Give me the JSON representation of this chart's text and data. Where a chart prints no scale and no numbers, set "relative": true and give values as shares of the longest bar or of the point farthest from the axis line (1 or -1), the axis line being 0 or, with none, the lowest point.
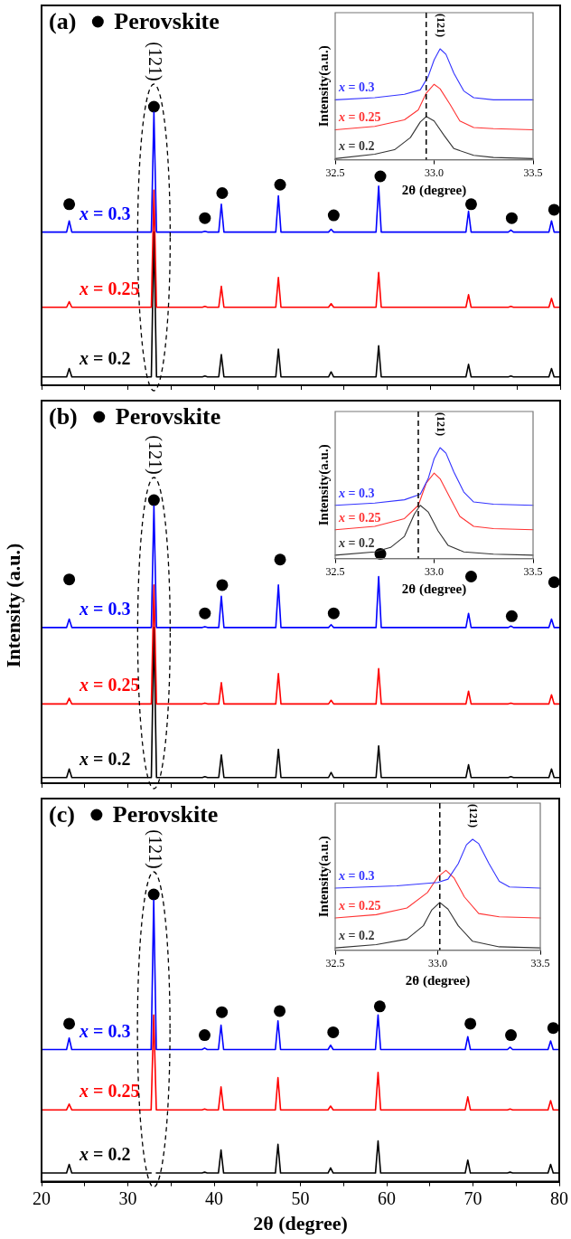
{
  "chart_data": [
    {
      "type": "line",
      "title": "(a)",
      "relative": true,
      "legend": "top left",
      "tick_labels": false,
      "xlim": [
        20,
        80
      ],
      "xticks": [
        20,
        {
          "value": 25,
          "label": null
        },
        30,
        {
          "value": 35,
          "label": null
        },
        40,
        {
          "value": 45,
          "label": null
        },
        50,
        {
          "value": 55,
          "label": null
        },
        60,
        {
          "value": 65,
          "label": null
        },
        70,
        {
          "value": 75,
          "label": null
        },
        80
      ],
      "x": [
        20,
        22.9,
        23.2,
        23.5,
        32.7,
        33.0,
        33.3,
        38.6,
        38.9,
        39.2,
        40.5,
        40.8,
        41.1,
        47.1,
        47.4,
        47.7,
        53.2,
        53.5,
        53.8,
        58.7,
        59.0,
        59.3,
        69.1,
        69.4,
        69.7,
        74.0,
        74.3,
        74.6,
        78.7,
        79.0,
        79.3,
        80
      ],
      "series": [
        {
          "name": "x = 0.3",
          "color": "#0000ff",
          "values": [
            0.55,
            0.55,
            0.59,
            0.55,
            0.55,
            0.98,
            0.55,
            0.55,
            0.553,
            0.55,
            0.55,
            0.65,
            0.55,
            0.55,
            0.68,
            0.55,
            0.55,
            0.56,
            0.55,
            0.55,
            0.715,
            0.55,
            0.55,
            0.625,
            0.55,
            0.55,
            0.557,
            0.55,
            0.55,
            0.59,
            0.55,
            0.55
          ]
        },
        {
          "name": "x = 0.25",
          "color": "#ff0000",
          "values": [
            0.28,
            0.28,
            0.3,
            0.28,
            0.28,
            0.7,
            0.28,
            0.28,
            0.283,
            0.28,
            0.28,
            0.355,
            0.28,
            0.28,
            0.387,
            0.28,
            0.28,
            0.293,
            0.28,
            0.28,
            0.405,
            0.28,
            0.28,
            0.325,
            0.28,
            0.28,
            0.283,
            0.28,
            0.28,
            0.312,
            0.28,
            0.28
          ]
        },
        {
          "name": "x = 0.2",
          "color": "#000000",
          "values": [
            0.03,
            0.03,
            0.06,
            0.03,
            0.03,
            0.55,
            0.03,
            0.03,
            0.033,
            0.03,
            0.03,
            0.11,
            0.03,
            0.03,
            0.13,
            0.03,
            0.03,
            0.048,
            0.03,
            0.03,
            0.142,
            0.03,
            0.03,
            0.075,
            0.03,
            0.03,
            0.033,
            0.03,
            0.03,
            0.06,
            0.03,
            0.03
          ]
        },
        {
          "name": "Perovskite",
          "type": "scatter",
          "marker": "circle",
          "color": "#000000",
          "x": [
            23.2,
            33.0,
            38.9,
            40.9,
            47.6,
            53.8,
            59.2,
            69.7,
            74.4,
            79.3
          ],
          "values": [
            0.65,
            1.0,
            0.6,
            0.69,
            0.72,
            0.61,
            0.75,
            0.65,
            0.6,
            0.63
          ]
        }
      ],
      "annotations": [
        {
          "text": "(121)",
          "x": 33.0,
          "y": 1.0
        }
      ]
    },
    {
      "type": "line",
      "relative": true,
      "xlabel": "2θ (degree)",
      "ylabel": "Intensity(a.u.)",
      "xlim": [
        32.5,
        33.5
      ],
      "xticks": [
        32.5,
        {
          "value": 33,
          "label": "33.0"
        },
        33.5
      ],
      "ref_lines": [
        {
          "axis": "x",
          "value": 32.96,
          "line_style": "dashed",
          "color": "#000000"
        }
      ],
      "series": [
        {
          "name": "x = 0.3",
          "color": "#3333ff",
          "x": [
            32.5,
            32.7,
            32.85,
            32.93,
            32.97,
            33.0,
            33.03,
            33.06,
            33.1,
            33.15,
            33.2,
            33.3,
            33.5
          ],
          "values": [
            0.54,
            0.56,
            0.59,
            0.63,
            0.75,
            0.9,
            1,
            0.95,
            0.78,
            0.62,
            0.56,
            0.54,
            0.54
          ]
        },
        {
          "name": "x = 0.25",
          "color": "#ff3333",
          "x": [
            32.5,
            32.7,
            32.85,
            32.92,
            32.96,
            33.0,
            33.03,
            33.08,
            33.13,
            33.2,
            33.3,
            33.5
          ],
          "values": [
            0.27,
            0.3,
            0.36,
            0.45,
            0.6,
            0.68,
            0.64,
            0.5,
            0.35,
            0.29,
            0.28,
            0.27
          ]
        },
        {
          "name": "x = 0.2",
          "color": "#333333",
          "x": [
            32.5,
            32.7,
            32.8,
            32.88,
            32.93,
            32.96,
            33.0,
            33.05,
            33.1,
            33.2,
            33.3,
            33.5
          ],
          "values": [
            0.01,
            0.05,
            0.09,
            0.2,
            0.34,
            0.39,
            0.35,
            0.22,
            0.1,
            0.04,
            0.02,
            0.01
          ]
        }
      ],
      "annotations": [
        {
          "text": "(121)",
          "x": 33.03,
          "y": 1.0
        }
      ]
    },
    {
      "type": "line",
      "title": "(b)",
      "relative": true,
      "legend": "top left",
      "tick_labels": false,
      "ylabel": "Intensity (a.u.)",
      "xlim": [
        20,
        80
      ],
      "xticks": [
        20,
        {
          "value": 25,
          "label": null
        },
        30,
        {
          "value": 35,
          "label": null
        },
        40,
        {
          "value": 45,
          "label": null
        },
        50,
        {
          "value": 55,
          "label": null
        },
        60,
        {
          "value": 65,
          "label": null
        },
        70,
        {
          "value": 75,
          "label": null
        },
        80
      ],
      "x": [
        20,
        22.9,
        23.2,
        23.5,
        32.7,
        33.0,
        33.3,
        38.6,
        38.9,
        39.2,
        40.5,
        40.8,
        41.1,
        47.1,
        47.4,
        47.7,
        53.2,
        53.5,
        53.8,
        58.7,
        59.0,
        59.3,
        69.1,
        69.4,
        69.7,
        74.0,
        74.3,
        74.6,
        78.7,
        79.0,
        79.3,
        80
      ],
      "series": [
        {
          "name": "x = 0.3",
          "color": "#0000ff",
          "values": [
            0.55,
            0.55,
            0.58,
            0.55,
            0.55,
            0.98,
            0.55,
            0.55,
            0.553,
            0.55,
            0.55,
            0.66,
            0.55,
            0.55,
            0.7,
            0.55,
            0.55,
            0.56,
            0.55,
            0.55,
            0.73,
            0.55,
            0.55,
            0.6,
            0.55,
            0.55,
            0.555,
            0.55,
            0.55,
            0.58,
            0.55,
            0.55
          ]
        },
        {
          "name": "x = 0.25",
          "color": "#ff0000",
          "values": [
            0.28,
            0.28,
            0.3,
            0.28,
            0.28,
            0.7,
            0.28,
            0.28,
            0.283,
            0.28,
            0.28,
            0.355,
            0.28,
            0.28,
            0.387,
            0.28,
            0.28,
            0.293,
            0.28,
            0.28,
            0.405,
            0.28,
            0.28,
            0.325,
            0.28,
            0.28,
            0.283,
            0.28,
            0.28,
            0.312,
            0.28,
            0.28
          ]
        },
        {
          "name": "x = 0.2",
          "color": "#000000",
          "values": [
            0.02,
            0.02,
            0.05,
            0.02,
            0.02,
            0.55,
            0.02,
            0.02,
            0.023,
            0.02,
            0.02,
            0.1,
            0.02,
            0.02,
            0.12,
            0.02,
            0.02,
            0.038,
            0.02,
            0.02,
            0.132,
            0.02,
            0.02,
            0.065,
            0.02,
            0.02,
            0.023,
            0.02,
            0.02,
            0.05,
            0.02,
            0.02
          ]
        },
        {
          "name": "Perovskite",
          "type": "scatter",
          "marker": "circle",
          "color": "#000000",
          "x": [
            23.2,
            33.0,
            38.9,
            40.9,
            47.6,
            53.8,
            59.2,
            69.7,
            74.4,
            79.3
          ],
          "values": [
            0.72,
            1.0,
            0.6,
            0.7,
            0.79,
            0.6,
            0.81,
            0.73,
            0.59,
            0.71
          ]
        }
      ],
      "annotations": [
        {
          "text": "(121)",
          "x": 33.0,
          "y": 1.0
        }
      ]
    },
    {
      "type": "line",
      "relative": true,
      "xlabel": "2θ (degree)",
      "ylabel": "Intensity(a.u.)",
      "xlim": [
        32.5,
        33.5
      ],
      "xticks": [
        32.5,
        {
          "value": 33,
          "label": "33.0"
        },
        33.5
      ],
      "ref_lines": [
        {
          "axis": "x",
          "value": 32.92,
          "line_style": "dashed",
          "color": "#000000"
        }
      ],
      "series": [
        {
          "name": "x = 0.3",
          "color": "#3333ff",
          "x": [
            32.5,
            32.7,
            32.85,
            32.93,
            32.97,
            33.0,
            33.03,
            33.06,
            33.1,
            33.15,
            33.2,
            33.3,
            33.5
          ],
          "values": [
            0.48,
            0.5,
            0.53,
            0.58,
            0.72,
            0.9,
            1,
            0.95,
            0.78,
            0.6,
            0.51,
            0.49,
            0.48
          ]
        },
        {
          "name": "x = 0.25",
          "color": "#ff3333",
          "x": [
            32.5,
            32.7,
            32.85,
            32.92,
            32.96,
            33.0,
            33.03,
            33.08,
            33.13,
            33.2,
            33.3,
            33.5
          ],
          "values": [
            0.26,
            0.29,
            0.36,
            0.48,
            0.68,
            0.77,
            0.72,
            0.55,
            0.38,
            0.29,
            0.27,
            0.26
          ]
        },
        {
          "name": "x = 0.2",
          "color": "#333333",
          "x": [
            32.5,
            32.7,
            32.78,
            32.85,
            32.9,
            32.93,
            32.97,
            33.02,
            33.07,
            33.15,
            33.3,
            33.5
          ],
          "values": [
            0.03,
            0.06,
            0.1,
            0.2,
            0.4,
            0.48,
            0.42,
            0.25,
            0.12,
            0.06,
            0.04,
            0.03
          ]
        }
      ],
      "annotations": [
        {
          "text": "(121)",
          "x": 33.03,
          "y": 1.0
        }
      ]
    },
    {
      "type": "line",
      "title": "(c)",
      "relative": true,
      "legend": "top left",
      "tick_labels": "x",
      "xlabel": "2θ (degree)",
      "xlim": [
        20,
        80
      ],
      "xticks": [
        20,
        {
          "value": 25,
          "label": null
        },
        30,
        {
          "value": 35,
          "label": null
        },
        40,
        {
          "value": 45,
          "label": null
        },
        50,
        {
          "value": 55,
          "label": null
        },
        60,
        {
          "value": 65,
          "label": null
        },
        70,
        {
          "value": 75,
          "label": null
        },
        80
      ],
      "x": [
        20,
        22.9,
        23.2,
        23.5,
        32.7,
        33.0,
        33.3,
        38.6,
        38.9,
        39.2,
        40.5,
        40.8,
        41.1,
        47.1,
        47.4,
        47.7,
        53.2,
        53.5,
        53.8,
        58.7,
        59.0,
        59.3,
        69.1,
        69.4,
        69.7,
        74.0,
        74.3,
        74.6,
        78.7,
        79.0,
        79.3,
        80
      ],
      "series": [
        {
          "name": "x = 0.3",
          "color": "#0000ff",
          "values": [
            0.46,
            0.46,
            0.5,
            0.46,
            0.46,
            0.98,
            0.46,
            0.46,
            0.465,
            0.46,
            0.46,
            0.545,
            0.46,
            0.46,
            0.56,
            0.46,
            0.46,
            0.475,
            0.46,
            0.46,
            0.58,
            0.46,
            0.46,
            0.505,
            0.46,
            0.46,
            0.468,
            0.46,
            0.46,
            0.49,
            0.46,
            0.46
          ]
        },
        {
          "name": "x = 0.25",
          "color": "#ff0000",
          "values": [
            0.25,
            0.25,
            0.27,
            0.25,
            0.25,
            0.58,
            0.25,
            0.25,
            0.253,
            0.25,
            0.25,
            0.33,
            0.25,
            0.25,
            0.362,
            0.25,
            0.25,
            0.263,
            0.25,
            0.25,
            0.38,
            0.25,
            0.25,
            0.295,
            0.25,
            0.25,
            0.253,
            0.25,
            0.25,
            0.282,
            0.25,
            0.25
          ]
        },
        {
          "name": "x = 0.2",
          "color": "#000000",
          "values": [
            0.03,
            0.03,
            0.06,
            0.03,
            0.03,
            null,
            0.03,
            0.03,
            0.033,
            0.03,
            0.03,
            0.11,
            0.03,
            0.03,
            0.13,
            0.03,
            0.03,
            0.048,
            0.03,
            0.03,
            0.142,
            0.03,
            0.03,
            0.075,
            0.03,
            0.03,
            0.033,
            0.03,
            0.03,
            0.06,
            0.03,
            0.03
          ]
        },
        {
          "name": "Perovskite",
          "type": "scatter",
          "marker": "circle",
          "color": "#000000",
          "x": [
            23.2,
            33.0,
            38.9,
            40.9,
            47.6,
            53.8,
            59.2,
            69.7,
            74.4,
            79.3
          ],
          "values": [
            0.55,
            1.0,
            0.51,
            0.59,
            0.594,
            0.52,
            0.61,
            0.55,
            0.51,
            0.535
          ]
        }
      ],
      "annotations": [
        {
          "text": "(121)",
          "x": 33.0,
          "y": 1.0
        }
      ]
    },
    {
      "type": "line",
      "relative": true,
      "xlabel": "2θ (degree)",
      "ylabel": "Intensity(a.u.)",
      "xlim": [
        32.5,
        33.5
      ],
      "xticks": [
        32.5,
        {
          "value": 33,
          "label": "33.0"
        },
        33.5
      ],
      "ref_lines": [
        {
          "axis": "x",
          "value": 33.01,
          "line_style": "dashed",
          "color": "#000000"
        }
      ],
      "series": [
        {
          "name": "x = 0.3",
          "color": "#3333ff",
          "x": [
            32.5,
            32.8,
            33.0,
            33.05,
            33.1,
            33.14,
            33.17,
            33.2,
            33.25,
            33.3,
            33.35,
            33.5
          ],
          "values": [
            0.56,
            0.58,
            0.61,
            0.64,
            0.78,
            0.95,
            1,
            0.96,
            0.78,
            0.62,
            0.57,
            0.56
          ]
        },
        {
          "name": "x = 0.25",
          "color": "#ff3333",
          "x": [
            32.5,
            32.7,
            32.85,
            32.95,
            33.0,
            33.04,
            33.08,
            33.13,
            33.2,
            33.3,
            33.5
          ],
          "values": [
            0.29,
            0.32,
            0.38,
            0.52,
            0.66,
            0.72,
            0.65,
            0.48,
            0.33,
            0.3,
            0.29
          ]
        },
        {
          "name": "x = 0.2",
          "color": "#333333",
          "x": [
            32.5,
            32.7,
            32.85,
            32.93,
            32.97,
            33.01,
            33.05,
            33.1,
            33.17,
            33.3,
            33.5
          ],
          "values": [
            0.02,
            0.05,
            0.1,
            0.22,
            0.36,
            0.43,
            0.37,
            0.22,
            0.08,
            0.03,
            0.02
          ]
        }
      ],
      "annotations": [
        {
          "text": "(121)",
          "x": 33.17,
          "y": 1.0
        }
      ]
    }
  ]
}
